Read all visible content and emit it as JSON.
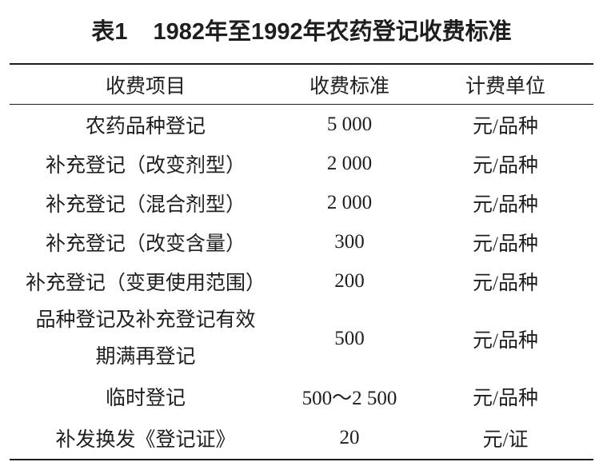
{
  "table": {
    "label": "表1",
    "title": "1982年至1992年农药登记收费标准",
    "columns": [
      "收费项目",
      "收费标准",
      "计费单位"
    ],
    "rows": [
      {
        "item": "农药品种登记",
        "fee": "5 000",
        "unit": "元/品种"
      },
      {
        "item": "补充登记（改变剂型）",
        "fee": "2 000",
        "unit": "元/品种"
      },
      {
        "item": "补充登记（混合剂型）",
        "fee": "2 000",
        "unit": "元/品种"
      },
      {
        "item": "补充登记（改变含量）",
        "fee": "300",
        "unit": "元/品种"
      },
      {
        "item": "补充登记（变更使用范围）",
        "fee": "200",
        "unit": "元/品种"
      },
      {
        "item_lines": [
          "品种登记及补充登记有效",
          "期满再登记"
        ],
        "fee": "500",
        "unit": "元/品种"
      },
      {
        "item": "临时登记",
        "fee": "500～2 500",
        "unit": "元/品种"
      },
      {
        "item": "补发换发《登记证》",
        "fee": "20",
        "unit": "元/证"
      }
    ]
  }
}
